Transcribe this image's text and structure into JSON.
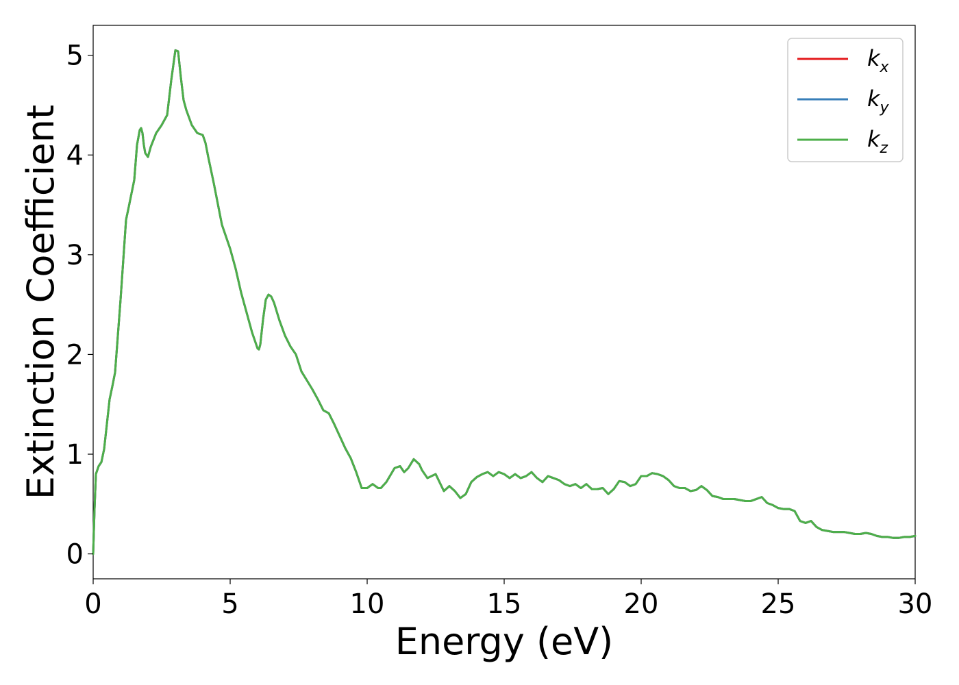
{
  "chart_data": {
    "type": "line",
    "xlabel": "Energy (eV)",
    "ylabel": "Extinction Coefficient",
    "xlim": [
      0,
      30
    ],
    "ylim": [
      -0.25,
      5.3
    ],
    "x_ticks": [
      0,
      5,
      10,
      15,
      20,
      25,
      30
    ],
    "y_ticks": [
      0,
      1,
      2,
      3,
      4,
      5
    ],
    "grid": false,
    "legend_position": "top-right",
    "series": [
      {
        "name": "k",
        "subscript": "x",
        "color": "#e41a1c"
      },
      {
        "name": "k",
        "subscript": "y",
        "color": "#377eb8"
      },
      {
        "name": "k",
        "subscript": "z",
        "color": "#4daf4a"
      }
    ],
    "x": [
      0,
      0.05,
      0.1,
      0.2,
      0.3,
      0.4,
      0.5,
      0.6,
      0.7,
      0.8,
      1.0,
      1.2,
      1.3,
      1.5,
      1.6,
      1.7,
      1.75,
      1.8,
      1.85,
      1.9,
      2.0,
      2.1,
      2.3,
      2.5,
      2.7,
      2.85,
      3.0,
      3.1,
      3.2,
      3.3,
      3.4,
      3.6,
      3.8,
      4.0,
      4.1,
      4.2,
      4.4,
      4.7,
      5.0,
      5.2,
      5.4,
      5.6,
      5.8,
      6.0,
      6.05,
      6.1,
      6.2,
      6.3,
      6.4,
      6.5,
      6.6,
      6.8,
      7.0,
      7.2,
      7.4,
      7.6,
      7.8,
      8.0,
      8.2,
      8.4,
      8.6,
      8.8,
      9.0,
      9.2,
      9.4,
      9.6,
      9.8,
      10.0,
      10.2,
      10.4,
      10.5,
      10.7,
      11.0,
      11.2,
      11.35,
      11.5,
      11.7,
      11.9,
      12.0,
      12.2,
      12.5,
      12.8,
      13.0,
      13.2,
      13.4,
      13.6,
      13.8,
      14.0,
      14.2,
      14.4,
      14.6,
      14.8,
      15.0,
      15.2,
      15.4,
      15.6,
      15.8,
      16.0,
      16.2,
      16.4,
      16.6,
      16.8,
      17.0,
      17.2,
      17.4,
      17.6,
      17.8,
      18.0,
      18.2,
      18.4,
      18.6,
      18.8,
      19.0,
      19.2,
      19.4,
      19.6,
      19.8,
      20.0,
      20.2,
      20.4,
      20.6,
      20.8,
      21.0,
      21.2,
      21.4,
      21.6,
      21.8,
      22.0,
      22.2,
      22.4,
      22.6,
      22.8,
      23.0,
      23.2,
      23.4,
      23.6,
      23.8,
      24.0,
      24.2,
      24.4,
      24.6,
      24.8,
      25.0,
      25.2,
      25.4,
      25.6,
      25.8,
      26.0,
      26.2,
      26.4,
      26.6,
      26.8,
      27.0,
      27.2,
      27.4,
      27.6,
      27.8,
      28.0,
      28.2,
      28.4,
      28.6,
      28.8,
      29.0,
      29.2,
      29.4,
      29.6,
      29.8,
      30.0
    ],
    "y": [
      0,
      0.45,
      0.8,
      0.88,
      0.92,
      1.05,
      1.3,
      1.55,
      1.68,
      1.82,
      2.55,
      3.35,
      3.48,
      3.75,
      4.1,
      4.25,
      4.27,
      4.22,
      4.1,
      4.02,
      3.98,
      4.08,
      4.22,
      4.3,
      4.4,
      4.75,
      5.05,
      5.04,
      4.78,
      4.55,
      4.45,
      4.3,
      4.22,
      4.2,
      4.12,
      3.98,
      3.72,
      3.3,
      3.06,
      2.86,
      2.62,
      2.42,
      2.22,
      2.06,
      2.05,
      2.1,
      2.35,
      2.55,
      2.6,
      2.58,
      2.52,
      2.34,
      2.19,
      2.08,
      2.0,
      1.83,
      1.74,
      1.65,
      1.55,
      1.44,
      1.41,
      1.3,
      1.18,
      1.06,
      0.96,
      0.82,
      0.66,
      0.66,
      0.7,
      0.66,
      0.66,
      0.72,
      0.86,
      0.88,
      0.82,
      0.86,
      0.95,
      0.9,
      0.84,
      0.76,
      0.8,
      0.63,
      0.68,
      0.63,
      0.56,
      0.6,
      0.72,
      0.77,
      0.8,
      0.82,
      0.78,
      0.82,
      0.8,
      0.76,
      0.8,
      0.76,
      0.78,
      0.82,
      0.76,
      0.72,
      0.78,
      0.76,
      0.74,
      0.7,
      0.68,
      0.7,
      0.66,
      0.7,
      0.65,
      0.65,
      0.66,
      0.6,
      0.65,
      0.73,
      0.72,
      0.68,
      0.7,
      0.78,
      0.78,
      0.81,
      0.8,
      0.78,
      0.74,
      0.68,
      0.66,
      0.66,
      0.63,
      0.64,
      0.68,
      0.64,
      0.58,
      0.57,
      0.55,
      0.55,
      0.55,
      0.54,
      0.53,
      0.53,
      0.55,
      0.57,
      0.51,
      0.49,
      0.46,
      0.45,
      0.45,
      0.43,
      0.33,
      0.31,
      0.33,
      0.27,
      0.24,
      0.23,
      0.22,
      0.22,
      0.22,
      0.21,
      0.2,
      0.2,
      0.21,
      0.2,
      0.18,
      0.17,
      0.17,
      0.16,
      0.16,
      0.17,
      0.17,
      0.18
    ]
  }
}
